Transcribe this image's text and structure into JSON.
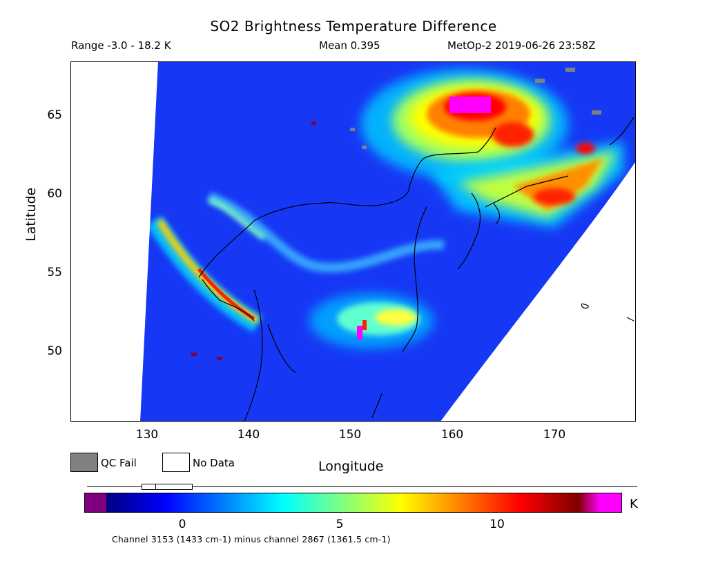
{
  "header": {
    "title": "SO2 Brightness Temperature Difference",
    "range": "Range -3.0 - 18.2 K",
    "mean": "Mean 0.395",
    "satellite": "MetOp-2 2019-06-26 23:58Z"
  },
  "axes": {
    "ylabel": "Latitude",
    "xlabel": "Longitude",
    "yticks": [
      {
        "label": "65"
      },
      {
        "label": "60"
      },
      {
        "label": "55"
      },
      {
        "label": "50"
      }
    ],
    "xticks": [
      {
        "label": "130"
      },
      {
        "label": "140"
      },
      {
        "label": "150"
      },
      {
        "label": "160"
      },
      {
        "label": "170"
      }
    ],
    "lon_range": [
      123,
      178
    ],
    "lat_range": [
      45.5,
      68.5
    ]
  },
  "legend": {
    "qc_fail_label": "QC Fail",
    "no_data_label": "No Data",
    "qc_fail_color": "#808080",
    "no_data_color": "#ffffff"
  },
  "colorbar": {
    "units": "K",
    "ticks": [
      "0",
      "5",
      "10"
    ],
    "tick_values": [
      0,
      5,
      10
    ],
    "range": [
      -3.0,
      18.2
    ],
    "under_color": "#800080",
    "over_color": "#ff00ff",
    "palette": [
      "#000080",
      "#0000ff",
      "#0080ff",
      "#00ffff",
      "#80ff80",
      "#ffff00",
      "#ff8000",
      "#ff0000",
      "#800000"
    ]
  },
  "footnote": "Channel 3153 (1433 cm-1) minus channel 2867 (1361.5 cm-1)",
  "map": {
    "background_color": "#1a3cff",
    "features": [
      {
        "name": "so2-plume-north",
        "lon": 162,
        "lat": 64.5,
        "peak": "over"
      },
      {
        "name": "so2-plume-east-band",
        "lon": 167,
        "lat": 60.5,
        "peak": "high"
      },
      {
        "name": "so2-plume-raikoke",
        "lon": 151,
        "lat": 51.5,
        "peak": "high"
      },
      {
        "name": "so2-plume-west-arc",
        "lon": 135,
        "lat": 54.5,
        "peak": "high"
      }
    ]
  }
}
